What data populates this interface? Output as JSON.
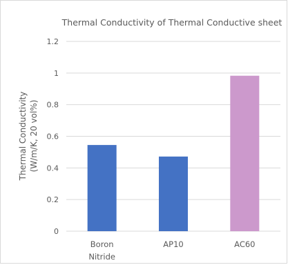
{
  "chart_data": {
    "type": "bar",
    "title": "Thermal Conductivity of  Thermal Conductive sheet",
    "xlabel": "",
    "ylabel_lines": [
      "Thermal Conductivity",
      "(W/m/K, 20 vol%)"
    ],
    "categories": [
      {
        "lines": [
          "Boron",
          "Nitride"
        ]
      },
      {
        "lines": [
          "AP10"
        ]
      },
      {
        "lines": [
          "AC60"
        ]
      }
    ],
    "values": [
      0.545,
      0.472,
      0.983
    ],
    "bar_colors": [
      "#4472c4",
      "#4472c4",
      "#cc99cc"
    ],
    "ylim": [
      0,
      1.2
    ],
    "yticks": [
      "0",
      "0.2",
      "0.4",
      "0.6",
      "0.8",
      "1",
      "1.2"
    ],
    "grid": true,
    "legend": "none"
  }
}
